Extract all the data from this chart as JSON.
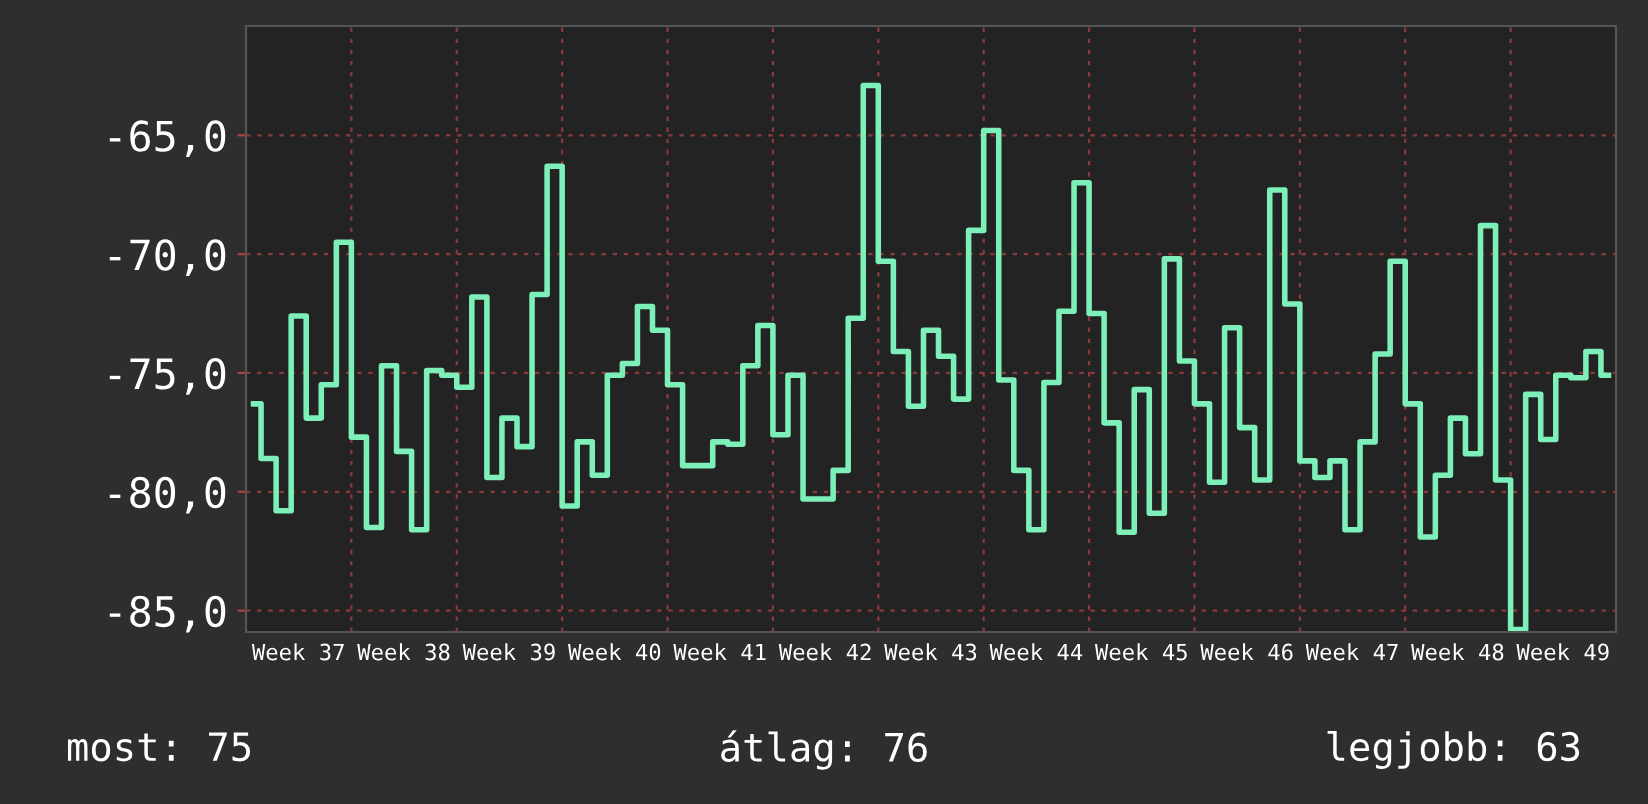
{
  "chart_data": {
    "type": "step",
    "color": "#7cf0b8",
    "grid": true,
    "categories": [
      null,
      null,
      null,
      "Week 37",
      null,
      null,
      null,
      null,
      null,
      null,
      "Week 38",
      null,
      null,
      null,
      null,
      null,
      null,
      "Week 39",
      null,
      null,
      null,
      null,
      null,
      null,
      "Week 40",
      null,
      null,
      null,
      null,
      null,
      null,
      "Week 41",
      null,
      null,
      null,
      null,
      null,
      null,
      "Week 42",
      null,
      null,
      null,
      null,
      null,
      null,
      "Week 43",
      null,
      null,
      null,
      null,
      null,
      null,
      "Week 44",
      null,
      null,
      null,
      null,
      null,
      null,
      "Week 45",
      null,
      null,
      null,
      null,
      null,
      null,
      "Week 46",
      null,
      null,
      null,
      null,
      null,
      null,
      "Week 47",
      null,
      null,
      null,
      null,
      null,
      null,
      "Week 48",
      null,
      null,
      null,
      null,
      null,
      null,
      "Week 49",
      null,
      null,
      null
    ],
    "values": [
      -76.3,
      -78.6,
      -80.8,
      -72.6,
      -76.9,
      -75.5,
      -69.5,
      -77.7,
      -81.5,
      -74.7,
      -78.3,
      -81.6,
      -74.9,
      -75.1,
      -75.6,
      -71.8,
      -79.4,
      -76.9,
      -78.1,
      -71.7,
      -66.3,
      -80.6,
      -77.9,
      -79.3,
      -75.1,
      -74.6,
      -72.2,
      -73.2,
      -75.5,
      -78.9,
      -78.9,
      -77.9,
      -78.0,
      -74.7,
      -73.0,
      -77.6,
      -75.1,
      -80.3,
      -80.3,
      -79.1,
      -72.7,
      -62.9,
      -70.3,
      -74.1,
      -76.4,
      -73.2,
      -74.3,
      -76.1,
      -69.0,
      -64.8,
      -75.3,
      -79.1,
      -81.6,
      -75.4,
      -72.4,
      -67.0,
      -72.5,
      -77.1,
      -81.7,
      -75.7,
      -80.9,
      -70.2,
      -74.5,
      -76.3,
      -79.6,
      -73.1,
      -77.3,
      -79.5,
      -67.3,
      -72.1,
      -78.7,
      -79.4,
      -78.7,
      -81.6,
      -77.9,
      -74.2,
      -70.3,
      -76.3,
      -81.9,
      -79.3,
      -76.9,
      -78.4,
      -68.8,
      -79.5,
      -85.8,
      -75.9,
      -77.8,
      -75.1,
      -75.2,
      -74.1,
      -75.1
    ],
    "ylim": [
      -85.9,
      -60.4
    ],
    "yticks": [
      {
        "value": -65,
        "label": "-65,0"
      },
      {
        "value": -70,
        "label": "-70,0"
      },
      {
        "value": -75,
        "label": "-75,0"
      },
      {
        "value": -80,
        "label": "-80,0"
      },
      {
        "value": -85,
        "label": "-85,0"
      }
    ],
    "annotations": [
      "most: 75",
      "átlag: 76",
      "legjobb: 63"
    ]
  }
}
